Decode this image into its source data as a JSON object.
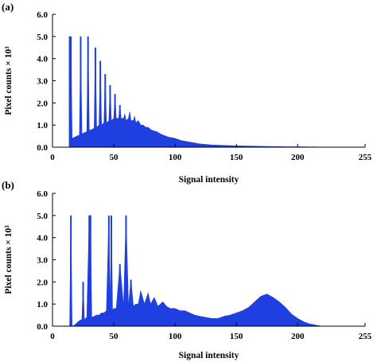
{
  "chart_data": [
    {
      "type": "area",
      "panel_label": "(a)",
      "title": "",
      "xlabel": "Signal intensity",
      "ylabel": "Pixel counts × 10³",
      "xlim": [
        0,
        255
      ],
      "ylim": [
        0,
        6.0
      ],
      "xticks": [
        0,
        50,
        100,
        150,
        200,
        255
      ],
      "yticks": [
        "0.0",
        "1.0",
        "2.0",
        "3.0",
        "4.0",
        "5.0",
        "6.0"
      ],
      "ytick_values": [
        0,
        1,
        2,
        3,
        4,
        5,
        6
      ],
      "color": "#1f3fe0",
      "grid": false,
      "x": [
        14,
        14.5,
        15,
        16,
        18,
        20,
        22,
        23,
        24,
        26,
        28,
        29,
        30,
        32,
        34,
        35,
        36,
        38,
        39,
        40,
        42,
        43,
        44,
        46,
        47,
        48,
        50,
        51,
        52,
        54,
        55,
        56,
        58,
        59,
        60,
        62,
        63,
        64,
        66,
        67,
        68,
        70,
        72,
        74,
        76,
        78,
        80,
        82,
        85,
        88,
        90,
        95,
        100,
        105,
        110,
        115,
        120,
        130,
        140,
        150,
        160,
        170,
        180,
        190,
        200,
        210,
        215,
        220,
        222
      ],
      "values": [
        5.0,
        0.1,
        5.0,
        0.4,
        0.45,
        0.5,
        0.55,
        5.0,
        0.6,
        0.65,
        0.7,
        5.0,
        0.75,
        0.8,
        0.85,
        4.5,
        0.9,
        1.0,
        3.9,
        1.0,
        1.1,
        3.3,
        1.1,
        1.2,
        2.8,
        1.2,
        1.3,
        2.4,
        1.3,
        1.3,
        1.9,
        1.3,
        1.3,
        1.5,
        1.2,
        1.3,
        1.6,
        1.2,
        1.2,
        1.4,
        1.1,
        1.2,
        1.0,
        1.0,
        0.9,
        0.9,
        0.8,
        0.75,
        0.7,
        0.6,
        0.55,
        0.45,
        0.4,
        0.3,
        0.25,
        0.2,
        0.15,
        0.1,
        0.08,
        0.06,
        0.05,
        0.04,
        0.03,
        0.02,
        0.02,
        0.01,
        0.01,
        0.0,
        0.0
      ]
    },
    {
      "type": "area",
      "panel_label": "(b)",
      "title": "",
      "xlabel": "Signal intensity",
      "ylabel": "Pixel counts × 10³",
      "xlim": [
        0,
        255
      ],
      "ylim": [
        0,
        6.0
      ],
      "xticks": [
        0,
        50,
        100,
        150,
        200,
        255
      ],
      "yticks": [
        "0.0",
        "1.0",
        "2.0",
        "3.0",
        "4.0",
        "5.0",
        "6.0"
      ],
      "ytick_values": [
        0,
        1,
        2,
        3,
        4,
        5,
        6
      ],
      "color": "#1f3fe0",
      "grid": false,
      "x": [
        14,
        15,
        16,
        18,
        20,
        22,
        24,
        25,
        26,
        28,
        30,
        31,
        32,
        34,
        36,
        38,
        40,
        42,
        44,
        46,
        47,
        48,
        49,
        50,
        52,
        55,
        58,
        60,
        62,
        64,
        66,
        68,
        70,
        72,
        75,
        78,
        80,
        83,
        86,
        88,
        90,
        93,
        96,
        100,
        104,
        108,
        112,
        116,
        120,
        125,
        130,
        135,
        140,
        145,
        150,
        155,
        160,
        165,
        170,
        175,
        180,
        185,
        190,
        195,
        200,
        205,
        210,
        215,
        220,
        222
      ],
      "values": [
        0.0,
        5.0,
        0.0,
        0.05,
        0.15,
        0.25,
        0.3,
        2.0,
        0.3,
        0.4,
        5.0,
        5.0,
        0.4,
        0.45,
        0.5,
        0.5,
        0.6,
        0.6,
        0.7,
        5.0,
        0.7,
        5.0,
        0.7,
        0.8,
        0.8,
        2.8,
        0.9,
        5.0,
        0.9,
        2.1,
        0.9,
        1.0,
        1.0,
        1.6,
        1.0,
        1.5,
        1.0,
        1.3,
        0.9,
        1.0,
        1.1,
        0.9,
        0.8,
        0.8,
        0.7,
        0.7,
        0.6,
        0.5,
        0.45,
        0.4,
        0.35,
        0.35,
        0.45,
        0.5,
        0.6,
        0.7,
        0.85,
        1.1,
        1.35,
        1.45,
        1.3,
        1.1,
        0.85,
        0.55,
        0.35,
        0.2,
        0.1,
        0.05,
        0.0,
        0.0
      ]
    }
  ]
}
